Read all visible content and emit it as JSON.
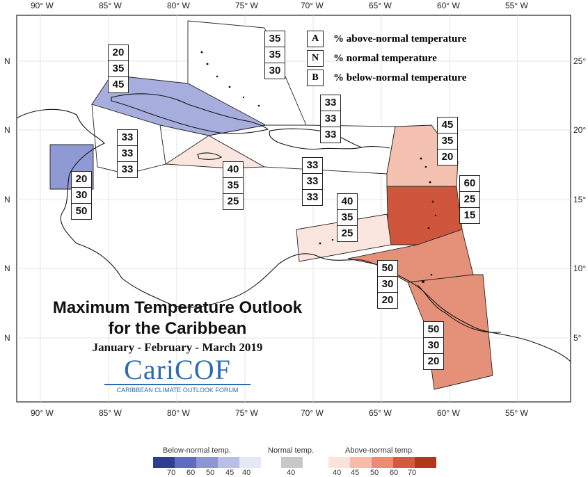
{
  "map": {
    "title_line1": "Maximum Temperature Outlook",
    "title_line2": "for the Caribbean",
    "period": "January - February - March 2019",
    "logo_text": "CariCOF",
    "logo_subtitle": "CARIBBEAN CLIMATE OUTLOOK FORUM",
    "lon_labels": [
      "90° W",
      "85° W",
      "80° W",
      "75° W",
      "70° W",
      "65° W",
      "60° W",
      "55° W"
    ],
    "lat_labels_left": [
      "N",
      "N",
      "N",
      "N",
      "N"
    ],
    "lat_labels_right": [
      "25°",
      "20°",
      "15°",
      "10°",
      "5°"
    ]
  },
  "key": {
    "rows": [
      {
        "letter": "A",
        "text": "% above-normal temperature"
      },
      {
        "letter": "N",
        "text": "% normal temperature"
      },
      {
        "letter": "B",
        "text": "% below-normal temperature"
      }
    ]
  },
  "regions": [
    {
      "name": "bahamas",
      "above": "35",
      "normal": "35",
      "below": "30"
    },
    {
      "name": "cuba",
      "above": "20",
      "normal": "35",
      "below": "45"
    },
    {
      "name": "turks-caicos",
      "above": "33",
      "normal": "33",
      "below": "33"
    },
    {
      "name": "caribbean-sea-west",
      "above": "33",
      "normal": "33",
      "below": "33"
    },
    {
      "name": "belize",
      "above": "20",
      "normal": "30",
      "below": "50"
    },
    {
      "name": "jamaica",
      "above": "40",
      "normal": "35",
      "below": "25"
    },
    {
      "name": "hispaniola-puerto-rico",
      "above": "33",
      "normal": "33",
      "below": "33"
    },
    {
      "name": "leeward-islands",
      "above": "45",
      "normal": "35",
      "below": "20"
    },
    {
      "name": "windward-islands",
      "above": "60",
      "normal": "25",
      "below": "15"
    },
    {
      "name": "abc-islands",
      "above": "40",
      "normal": "35",
      "below": "25"
    },
    {
      "name": "trinidad-tobago",
      "above": "50",
      "normal": "30",
      "below": "20"
    },
    {
      "name": "guianas",
      "above": "50",
      "normal": "30",
      "below": "20"
    }
  ],
  "colorbar": {
    "below_title": "Below-normal temp.",
    "normal_title": "Normal temp.",
    "above_title": "Above-normal temp.",
    "below_ticks": [
      "70",
      "60",
      "50",
      "45",
      "40"
    ],
    "normal_ticks": [
      "40"
    ],
    "above_ticks": [
      "40",
      "45",
      "50",
      "60",
      "70"
    ],
    "below_colors": [
      "#2f3f8f",
      "#5f6bbf",
      "#8c96d2",
      "#b9bfe4",
      "#e4e7f5"
    ],
    "normal_color": "#c8c8c8",
    "above_colors": [
      "#fbe3dc",
      "#f6bca8",
      "#ea8d72",
      "#d35a41",
      "#b2371f"
    ]
  }
}
